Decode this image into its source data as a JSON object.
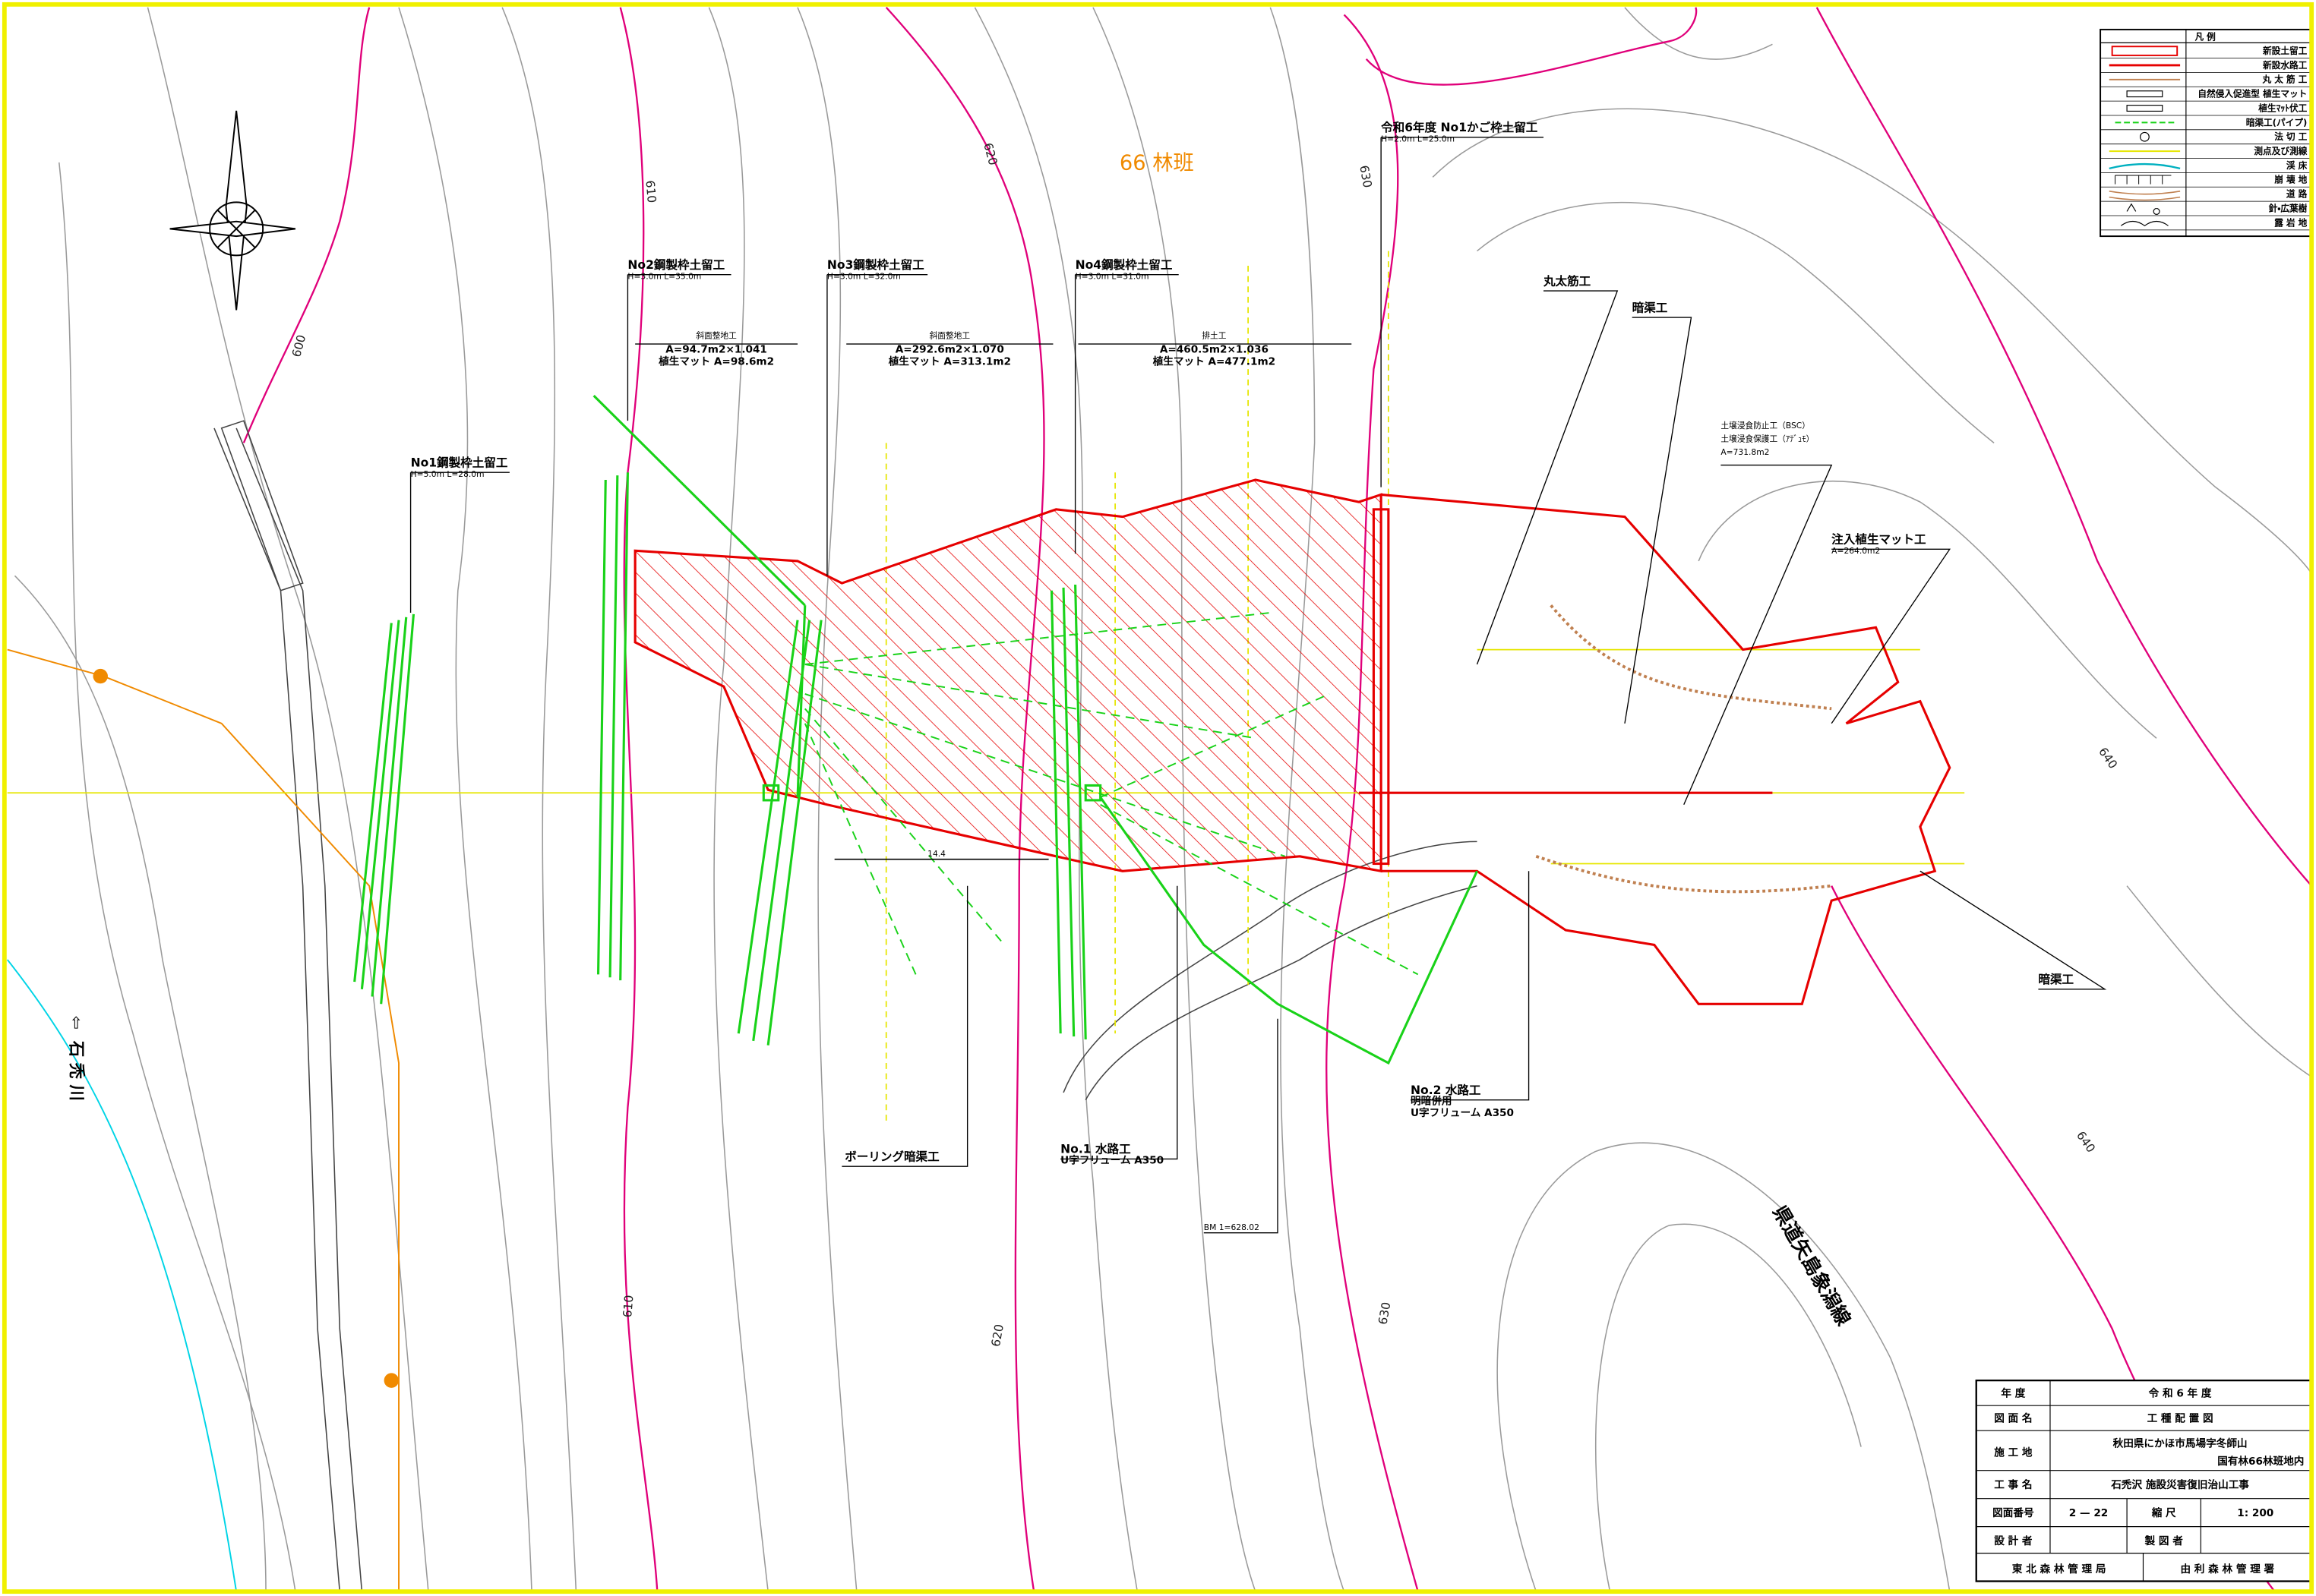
{
  "map": {
    "compartment": "66 林班",
    "river": "石 禿 川",
    "river_arrow": "⇦",
    "road": "県道矢島象潟線",
    "benchmark": "BM 1=628.02",
    "dimension": "14.4",
    "contour_labels": [
      "600",
      "610",
      "610",
      "620",
      "620",
      "630",
      "630",
      "640",
      "640"
    ],
    "annotations": [
      {
        "lines": [
          "No1鋼製枠土留工",
          "H=5.0m  L=28.0m"
        ]
      },
      {
        "lines": [
          "No2鋼製枠土留工",
          "H=3.0m  L=35.0m"
        ]
      },
      {
        "lines": [
          "No3鋼製枠土留工",
          "H=3.0m  L=32.0m"
        ]
      },
      {
        "lines": [
          "No4鋼製枠土留工",
          "H=3.0m  L=31.0m"
        ]
      },
      {
        "lines": [
          "令和6年度 No1かご枠土留工",
          "H=2.0m  L=25.0m"
        ]
      },
      {
        "lines": [
          "斜面整地工",
          "A=94.7m2×1.041",
          "植生マット A=98.6m2"
        ]
      },
      {
        "lines": [
          "斜面整地工",
          "A=292.6m2×1.070",
          "植生マット A=313.1m2"
        ]
      },
      {
        "lines": [
          "排土工",
          "A=460.5m2×1.036",
          "植生マット A=477.1m2"
        ]
      },
      {
        "lines": [
          "丸太筋工"
        ]
      },
      {
        "lines": [
          "暗渠工"
        ]
      },
      {
        "lines": [
          "土壌浸食防止工（BSC）",
          "土壌浸食保護工（ｱﾃﾞｭﾓ）",
          "A=731.8m2"
        ]
      },
      {
        "lines": [
          "注入植生マット工",
          "A=264.0m2"
        ]
      },
      {
        "lines": [
          "暗渠工"
        ]
      },
      {
        "lines": [
          "No.2 水路工",
          "明暗併用",
          "U字フリューム A350"
        ]
      },
      {
        "lines": [
          "No.1 水路工",
          "U字フリューム A350"
        ]
      },
      {
        "lines": [
          "ボーリング暗渠工"
        ]
      }
    ]
  },
  "legend": {
    "title": "凡        例",
    "items": [
      "新設土留工",
      "新設水路工",
      "丸 太 筋 工",
      "自然侵入促進型 植生マット",
      "植生ﾏｯﾄ伏工",
      "暗渠工(パイプ)",
      "法 切 工",
      "測点及び測線",
      "渓        床",
      "崩 壊 地",
      "道        路",
      "針・広葉樹",
      "露 岩 地"
    ]
  },
  "title_block": {
    "year_label": "年    度",
    "year": "令 和  6  年 度",
    "drawing_label": "図 面 名",
    "drawing": "工 種 配 置 図",
    "site_label": "施 工 地",
    "site": [
      "秋田県にかほ市馬場字冬師山",
      "国有林66林班地内"
    ],
    "work_label": "工 事 名",
    "work": "石禿沢  施設災害復旧治山工事",
    "number_label": "図面番号",
    "number": "2 — 22",
    "scale_label": "縮    尺",
    "scale": "1: 200",
    "designer_label": "設 計 者",
    "drafter_label": "製 図 者",
    "bureau": "東 北 森 林 管 理 局",
    "office": "由 利 森 林 管 理 署"
  }
}
